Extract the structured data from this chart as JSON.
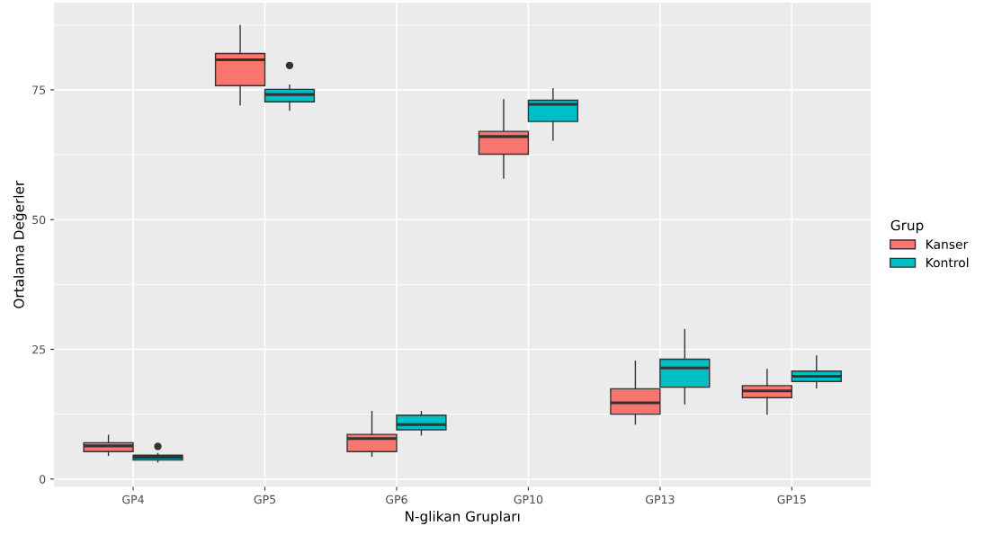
{
  "chart_data": {
    "type": "box",
    "xlabel": "N-glikan Grupları",
    "ylabel": "Ortalama Değerler",
    "legend_title": "Grup",
    "categories": [
      "GP4",
      "GP5",
      "GP6",
      "GP10",
      "GP13",
      "GP15"
    ],
    "series": [
      {
        "name": "Kanser",
        "color": "#f8766d",
        "boxes": [
          {
            "low": 4.6,
            "q1": 5.3,
            "median": 6.4,
            "q3": 7.0,
            "high": 8.4
          },
          {
            "low": 72.1,
            "q1": 75.8,
            "median": 80.8,
            "q3": 82.0,
            "high": 87.4
          },
          {
            "low": 4.4,
            "q1": 5.3,
            "median": 7.8,
            "q3": 8.6,
            "high": 13.0
          },
          {
            "low": 58.0,
            "q1": 62.6,
            "median": 66.0,
            "q3": 67.0,
            "high": 73.1
          },
          {
            "low": 10.6,
            "q1": 12.5,
            "median": 14.7,
            "q3": 17.4,
            "high": 22.7
          },
          {
            "low": 12.5,
            "q1": 15.7,
            "median": 17.0,
            "q3": 18.0,
            "high": 21.1
          }
        ]
      },
      {
        "name": "Kontrol",
        "color": "#00bfc4",
        "boxes": [
          {
            "low": 3.3,
            "q1": 3.7,
            "median": 4.2,
            "q3": 4.6,
            "high": 4.9,
            "outliers": [
              6.3
            ]
          },
          {
            "low": 71.1,
            "q1": 72.7,
            "median": 74.1,
            "q3": 75.1,
            "high": 75.9,
            "outliers": [
              79.7
            ]
          },
          {
            "low": 8.5,
            "q1": 9.5,
            "median": 10.5,
            "q3": 12.3,
            "high": 13.0
          },
          {
            "low": 65.3,
            "q1": 68.9,
            "median": 72.2,
            "q3": 73.0,
            "high": 75.2
          },
          {
            "low": 14.5,
            "q1": 17.7,
            "median": 21.4,
            "q3": 23.1,
            "high": 28.8
          },
          {
            "low": 17.6,
            "q1": 18.8,
            "median": 19.8,
            "q3": 20.8,
            "high": 23.7
          }
        ]
      }
    ],
    "ylim": [
      -1.5,
      91.8
    ],
    "yticks": [
      0,
      25,
      50,
      75
    ],
    "grid": true,
    "legend": "right"
  }
}
